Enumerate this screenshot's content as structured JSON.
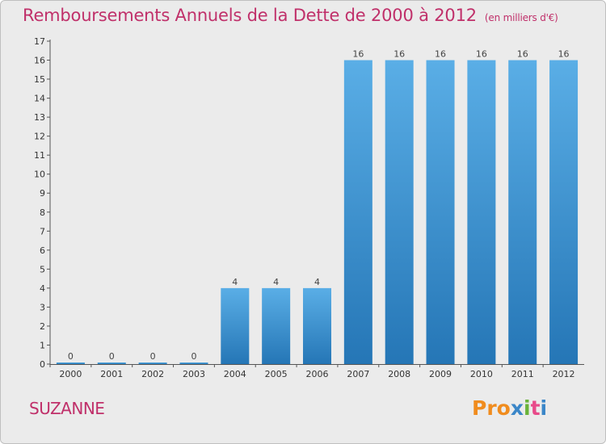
{
  "page": {
    "title": "Remboursements Annuels de la Dette de 2000 à 2012",
    "unit": "(en milliers d'€)",
    "commune": "SUZANNE",
    "logo": "Proxiti"
  },
  "colors": {
    "title": "#c0306a",
    "bar_top": "#5aaee6",
    "bar_bottom": "#2576b6",
    "background": "#ebebeb"
  },
  "chart_data": {
    "type": "bar",
    "title": "Remboursements Annuels de la Dette de 2000 à 2012",
    "subtitle": "(en milliers d'€)",
    "xlabel": "",
    "ylabel": "",
    "categories": [
      "2000",
      "2001",
      "2002",
      "2003",
      "2004",
      "2005",
      "2006",
      "2007",
      "2008",
      "2009",
      "2010",
      "2011",
      "2012"
    ],
    "values": [
      0,
      0,
      0,
      0,
      4,
      4,
      4,
      16,
      16,
      16,
      16,
      16,
      16
    ],
    "value_labels": [
      "0",
      "0",
      "0",
      "0",
      "4",
      "4",
      "4",
      "16",
      "16",
      "16",
      "16",
      "16",
      "16"
    ],
    "ylim": [
      0,
      17
    ],
    "yticks": [
      0,
      1,
      2,
      3,
      4,
      5,
      6,
      7,
      8,
      9,
      10,
      11,
      12,
      13,
      14,
      15,
      16,
      17
    ],
    "grid": false,
    "legend": "none"
  }
}
